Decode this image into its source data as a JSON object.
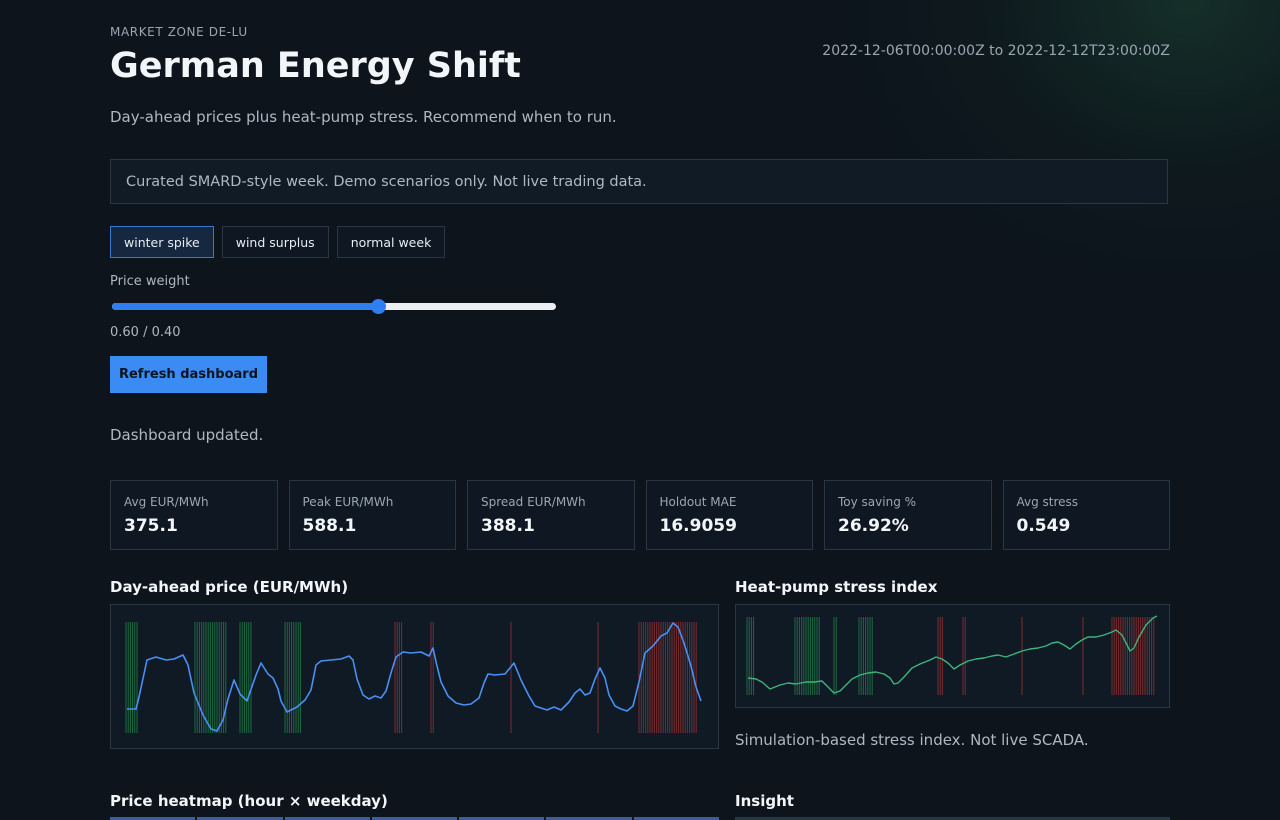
{
  "header": {
    "eyebrow": "MARKET ZONE DE-LU",
    "title": "German Energy Shift",
    "date_range": "2022-12-06T00:00:00Z to 2022-12-12T23:00:00Z",
    "subtitle": "Day-ahead prices plus heat-pump stress. Recommend when to run."
  },
  "notice": "Curated SMARD-style week. Demo scenarios only. Not live trading data.",
  "scenarios": [
    {
      "label": "winter spike",
      "active": true
    },
    {
      "label": "wind surplus",
      "active": false
    },
    {
      "label": "normal week",
      "active": false
    }
  ],
  "price_weight": {
    "label": "Price weight",
    "value": 0.6,
    "display": "0.60 / 0.40"
  },
  "refresh_label": "Refresh dashboard",
  "status_text": "Dashboard updated.",
  "kpis": [
    {
      "label": "Avg EUR/MWh",
      "value": "375.1"
    },
    {
      "label": "Peak EUR/MWh",
      "value": "588.1"
    },
    {
      "label": "Spread EUR/MWh",
      "value": "388.1"
    },
    {
      "label": "Holdout MAE",
      "value": "16.9059"
    },
    {
      "label": "Toy saving %",
      "value": "26.92%"
    },
    {
      "label": "Avg stress",
      "value": "0.549"
    }
  ],
  "price_chart": {
    "title": "Day-ahead price (EUR/MWh)",
    "line_color": "#4a8ff2",
    "cheap_color": "#1f7a45",
    "expensive_color": "#8a3030"
  },
  "stress_chart": {
    "title": "Heat-pump stress index",
    "note": "Simulation-based stress index. Not live SCADA.",
    "line_color": "#3fb37a"
  },
  "heatmap": {
    "title": "Price heatmap (hour × weekday)"
  },
  "insight": {
    "title": "Insight"
  }
}
